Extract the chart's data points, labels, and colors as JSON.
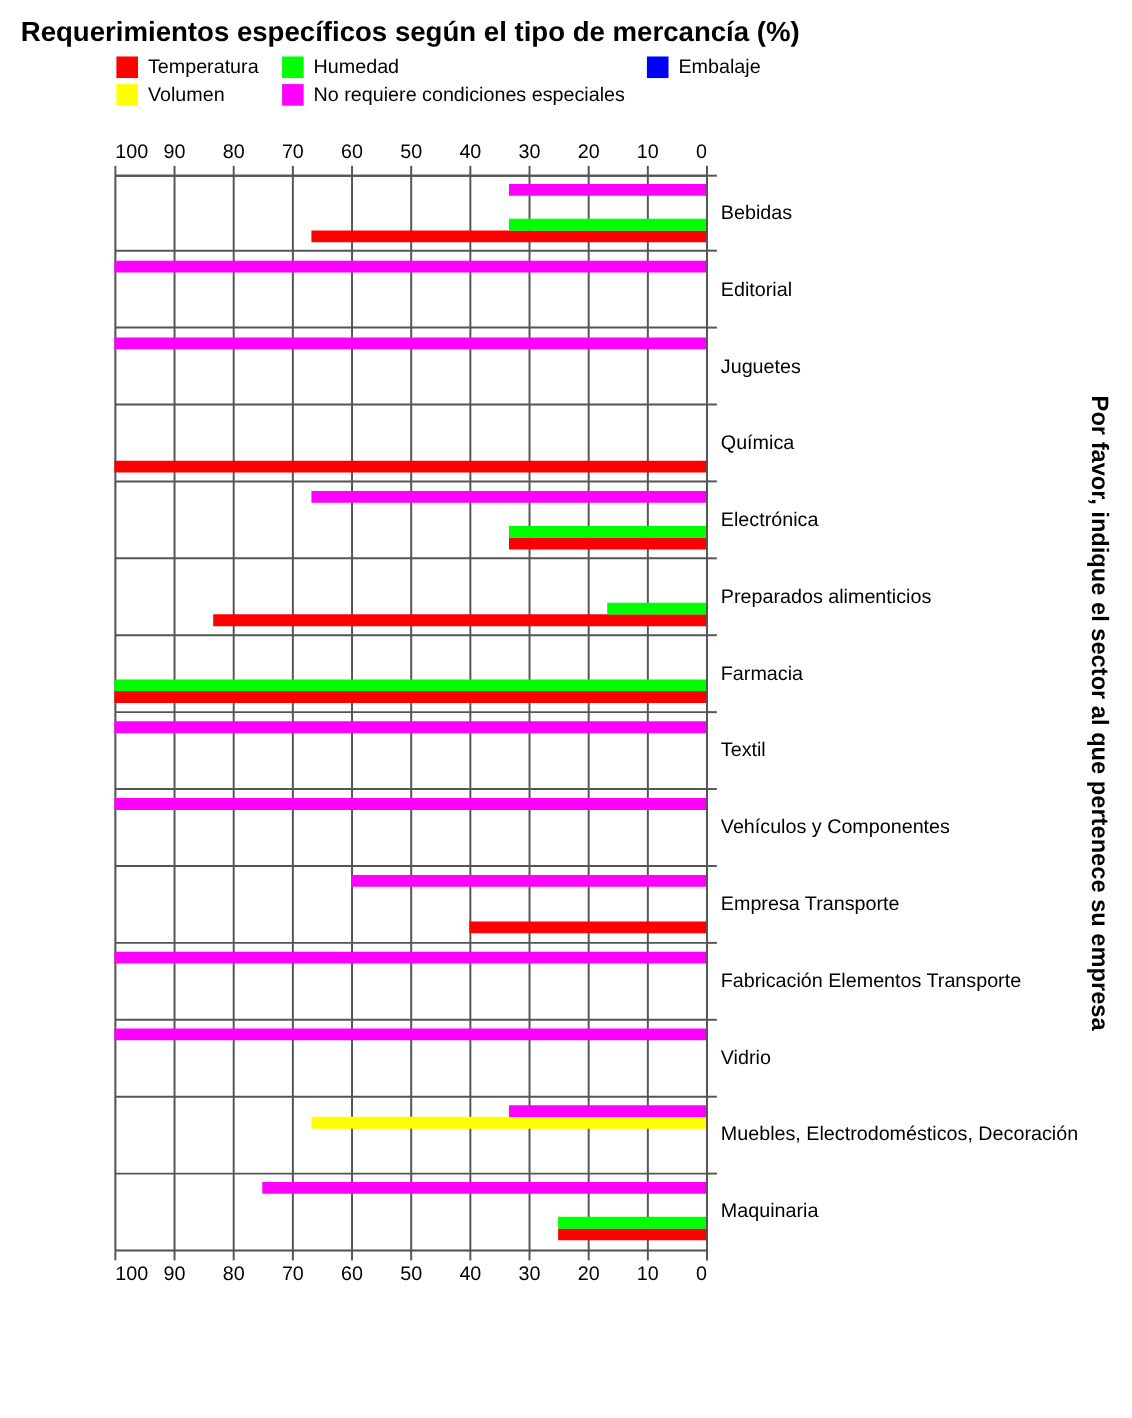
{
  "chart_data": {
    "type": "bar",
    "orientation": "horizontal",
    "title": "Requerimientos específicos según el tipo de mercancía (%)",
    "ylabel": "Por favor, indique el sector al que pertenece su empresa",
    "categories": [
      "Bebidas",
      "Editorial",
      "Juguetes",
      "Química",
      "Electrónica",
      "Preparados alimenticios",
      "Farmacia",
      "Textil",
      "Vehículos y Componentes",
      "Empresa Transporte",
      "Fabricación Elementos Transporte",
      "Vidrio",
      "Muebles, Electrodomésticos, Decoración",
      "Maquinaria"
    ],
    "series": [
      {
        "name": "Temperatura",
        "color": "#ff0000",
        "values": [
          66.7,
          0,
          0,
          100,
          33.3,
          83.3,
          100,
          0,
          0,
          40,
          0,
          0,
          0,
          25
        ]
      },
      {
        "name": "Humedad",
        "color": "#00ff00",
        "values": [
          33.3,
          0,
          0,
          0,
          33.3,
          16.7,
          100,
          0,
          0,
          0,
          0,
          0,
          0,
          25
        ]
      },
      {
        "name": "Embalaje",
        "color": "#0000ff",
        "values": [
          0,
          0,
          0,
          0,
          0,
          0,
          0,
          0,
          0,
          0,
          0,
          0,
          0,
          0
        ]
      },
      {
        "name": "Volumen",
        "color": "#ffff00",
        "values": [
          0,
          0,
          0,
          0,
          0,
          0,
          0,
          0,
          0,
          0,
          0,
          0,
          66.7,
          0
        ]
      },
      {
        "name": "No requiere condiciones especiales",
        "color": "#ff00ff",
        "values": [
          33.3,
          100,
          100,
          0,
          66.7,
          0,
          0,
          100,
          100,
          60,
          100,
          100,
          33.3,
          75
        ]
      }
    ],
    "xlim": [
      100,
      0
    ],
    "xticks": [
      100,
      90,
      80,
      70,
      60,
      50,
      40,
      30,
      20,
      10,
      0
    ],
    "x2lim": [
      100,
      0
    ],
    "x2ticks": [
      100,
      90,
      80,
      70,
      60,
      50,
      40,
      30,
      20,
      10,
      0
    ],
    "grid": true,
    "legend": "top left"
  }
}
